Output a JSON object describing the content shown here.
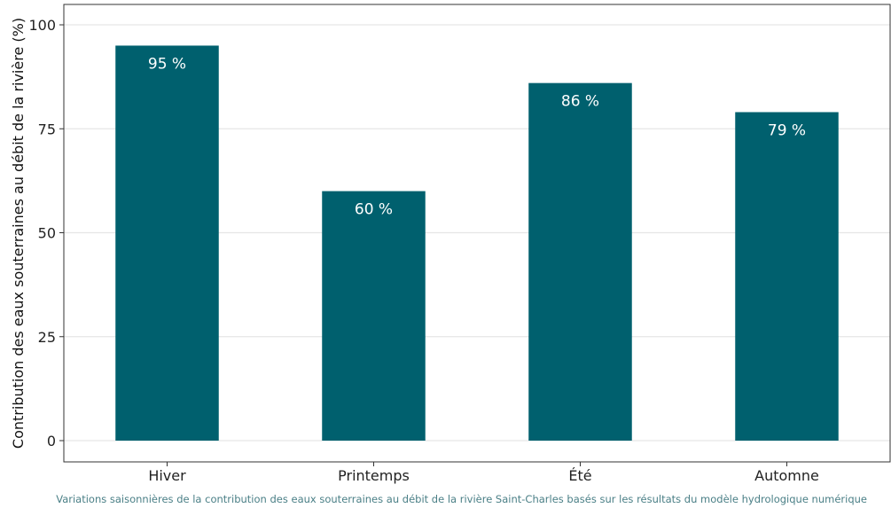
{
  "chart_data": {
    "type": "bar",
    "categories": [
      "Hiver",
      "Printemps",
      "Été",
      "Automne"
    ],
    "values": [
      95,
      60,
      86,
      79
    ],
    "data_labels": [
      "95 %",
      "60 %",
      "86 %",
      "79 %"
    ],
    "ylabel": "Contribution des eaux souterraines au débit de la rivière (%)",
    "xlabel": "",
    "ylim": [
      0,
      100
    ],
    "yticks": [
      0,
      25,
      50,
      75,
      100
    ],
    "grid": "horizontal",
    "bar_color": "#00606e",
    "grid_color": "#e6e6e6"
  },
  "caption": "Variations saisonnières de la contribution des eaux souterraines au débit de la rivière Saint-Charles basés sur les résultats du modèle hydrologique numérique"
}
